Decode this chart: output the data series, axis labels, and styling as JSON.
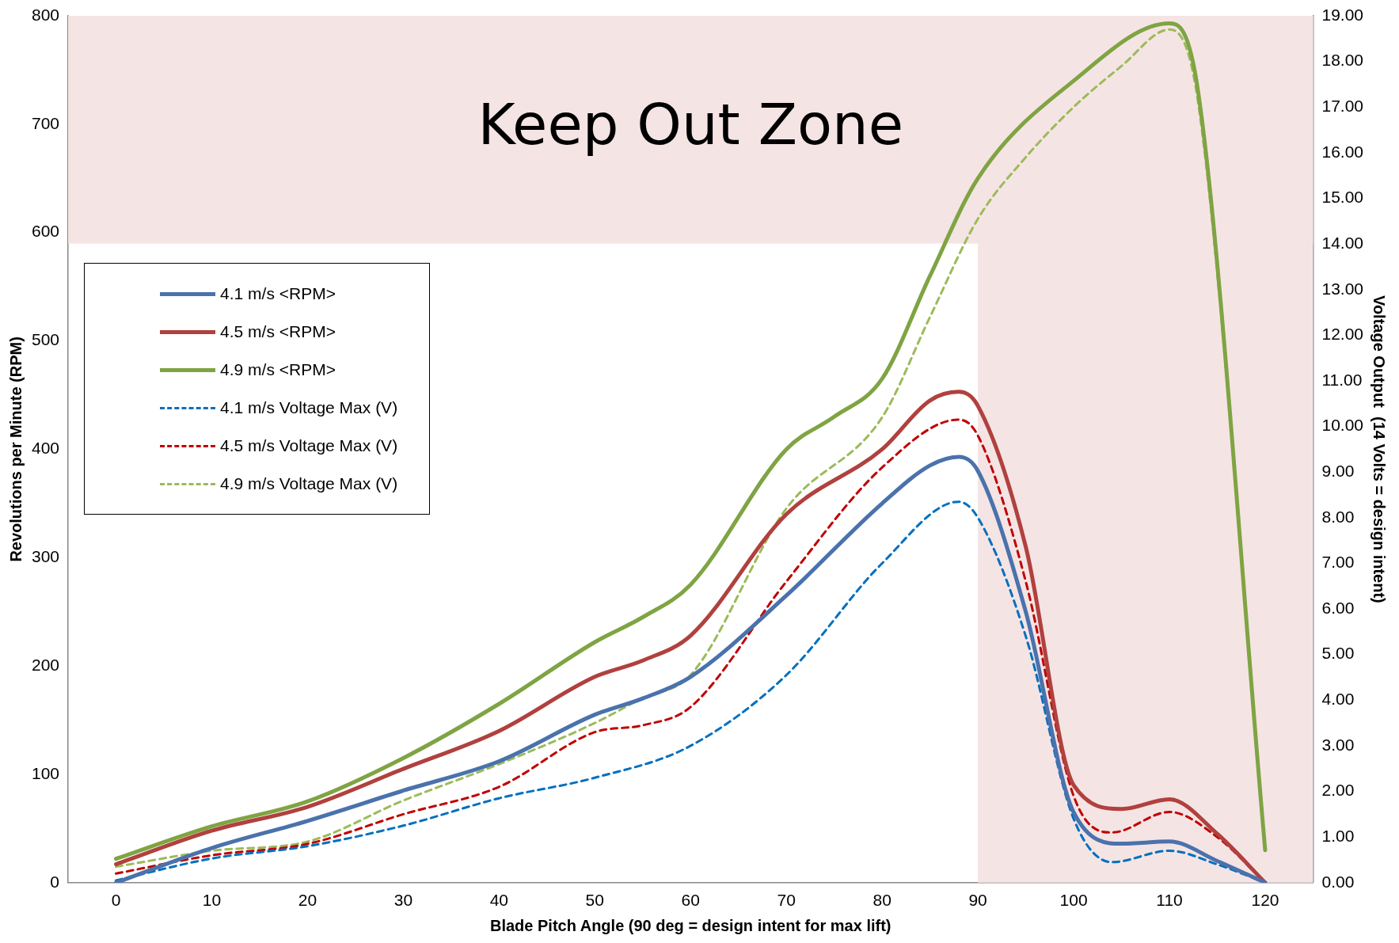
{
  "chart_data": {
    "type": "line",
    "xlabel": "Blade Pitch Angle (90 deg = design intent for max lift)",
    "ylabel": "Revolutions per Minute (RPM)",
    "y2label": "Voltage Output  (14 Volts = design intent)",
    "xlim": [
      -5,
      125
    ],
    "xticks": [
      0,
      10,
      20,
      30,
      40,
      50,
      60,
      70,
      80,
      90,
      100,
      110,
      120
    ],
    "ylim": [
      0,
      800
    ],
    "yticks": [
      0,
      100,
      200,
      300,
      400,
      500,
      600,
      700,
      800
    ],
    "y2lim": [
      0,
      19
    ],
    "y2ticks": [
      {
        "value": 0,
        "label": "0.00"
      },
      {
        "value": 1,
        "label": "1.00"
      },
      {
        "value": 2,
        "label": "2.00"
      },
      {
        "value": 3,
        "label": "3.00"
      },
      {
        "value": 4,
        "label": "4.00"
      },
      {
        "value": 5,
        "label": "5.00"
      },
      {
        "value": 6,
        "label": "6.00"
      },
      {
        "value": 7,
        "label": "7.00"
      },
      {
        "value": 8,
        "label": "8.00"
      },
      {
        "value": 9,
        "label": "9.00"
      },
      {
        "value": 10,
        "label": "10.00"
      },
      {
        "value": 11,
        "label": "11.00"
      },
      {
        "value": 12,
        "label": "12.00"
      },
      {
        "value": 13,
        "label": "13.00"
      },
      {
        "value": 14,
        "label": "14.00"
      },
      {
        "value": 15,
        "label": "15.00"
      },
      {
        "value": 16,
        "label": "16.00"
      },
      {
        "value": 17,
        "label": "17.00"
      },
      {
        "value": 18,
        "label": "18.00"
      },
      {
        "value": 19,
        "label": "19.00"
      }
    ],
    "grid": false,
    "legend": "top left",
    "marker": "none",
    "bands": [
      {
        "axis": "y",
        "from": 590,
        "to": 800,
        "label": "Keep Out Zone",
        "color": "#f5e4e4"
      },
      {
        "axis": "x",
        "from": 90,
        "to": 125,
        "color": "#f5e4e4"
      }
    ],
    "series": [
      {
        "name": "4.1 m/s <RPM>",
        "color": "#4a72ac",
        "line_style": "solid",
        "x": [
          0,
          10,
          20,
          30,
          40,
          50,
          55,
          60,
          70,
          80,
          85,
          88,
          90,
          95,
          100,
          105,
          110,
          115,
          120
        ],
        "values": [
          0,
          32,
          57,
          85,
          112,
          155,
          170,
          190,
          265,
          350,
          385,
          393,
          380,
          250,
          65,
          36,
          38,
          20,
          0
        ]
      },
      {
        "name": "4.5 m/s <RPM>",
        "color": "#b0413e",
        "line_style": "solid",
        "x": [
          0,
          10,
          20,
          30,
          40,
          50,
          55,
          60,
          70,
          80,
          85,
          88,
          90,
          95,
          100,
          105,
          110,
          115,
          120
        ],
        "values": [
          17,
          48,
          70,
          105,
          140,
          190,
          205,
          228,
          340,
          400,
          445,
          453,
          440,
          310,
          90,
          68,
          77,
          45,
          0
        ]
      },
      {
        "name": "4.9 m/s <RPM>",
        "color": "#7fa443",
        "line_style": "solid",
        "x": [
          0,
          10,
          20,
          30,
          40,
          50,
          55,
          60,
          70,
          75,
          80,
          85,
          90,
          100,
          110,
          113,
          120
        ],
        "values": [
          22,
          52,
          75,
          115,
          165,
          222,
          245,
          275,
          400,
          430,
          465,
          560,
          650,
          740,
          793,
          730,
          30
        ]
      },
      {
        "name": "4.1 m/s Voltage Max (V)",
        "color": "#0070c0",
        "line_style": "dashed",
        "axis": "y2",
        "x": [
          0,
          10,
          20,
          30,
          40,
          50,
          60,
          70,
          80,
          88,
          90,
          95,
          100,
          104,
          110,
          115,
          120
        ],
        "values": [
          0.05,
          0.53,
          0.8,
          1.25,
          1.85,
          2.3,
          3.0,
          4.55,
          7.0,
          8.35,
          8.0,
          5.4,
          1.4,
          0.45,
          0.7,
          0.4,
          0
        ]
      },
      {
        "name": "4.5 m/s Voltage Max (V)",
        "color": "#c00000",
        "line_style": "dashed",
        "axis": "y2",
        "x": [
          0,
          10,
          20,
          30,
          40,
          50,
          55,
          60,
          70,
          80,
          88,
          90,
          95,
          100,
          104,
          110,
          115,
          120
        ],
        "values": [
          0.2,
          0.6,
          0.85,
          1.5,
          2.1,
          3.3,
          3.45,
          3.85,
          6.6,
          9.1,
          10.15,
          9.8,
          6.6,
          1.9,
          1.1,
          1.55,
          1.0,
          0
        ]
      },
      {
        "name": "4.9 m/s Voltage Max (V)",
        "color": "#9bbb59",
        "line_style": "dashed",
        "axis": "y2",
        "x": [
          0,
          10,
          20,
          30,
          40,
          50,
          55,
          60,
          70,
          80,
          85,
          90,
          95,
          100,
          105,
          110,
          113,
          120
        ],
        "values": [
          0.35,
          0.7,
          0.9,
          1.8,
          2.6,
          3.5,
          4.05,
          4.55,
          8.2,
          10.2,
          12.4,
          14.55,
          15.9,
          17.0,
          17.9,
          18.7,
          17.1,
          0.8
        ]
      }
    ]
  }
}
